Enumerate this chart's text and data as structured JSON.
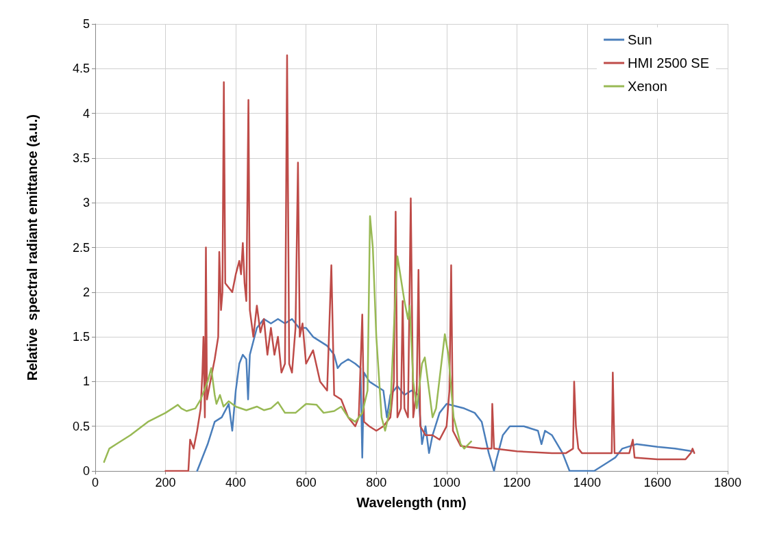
{
  "chart_data": {
    "type": "line",
    "xlabel": "Wavelength (nm)",
    "ylabel": "Relative  spectral radiant emittance (a.u.)",
    "xlim": [
      0,
      1800
    ],
    "xticks": [
      0,
      200,
      400,
      600,
      800,
      1000,
      1200,
      1400,
      1600,
      1800
    ],
    "ylim": [
      0,
      5
    ],
    "yticks": [
      0,
      0.5,
      1,
      1.5,
      2,
      2.5,
      3,
      3.5,
      4,
      4.5,
      5
    ],
    "grid": true,
    "legend": "top right",
    "marker": "none",
    "line_style": "solid",
    "series": [
      {
        "name": "Sun",
        "color": "#4a7ebb",
        "x": [
          290,
          300,
          320,
          340,
          360,
          380,
          390,
          400,
          410,
          420,
          430,
          435,
          440,
          460,
          480,
          500,
          520,
          540,
          560,
          580,
          600,
          620,
          640,
          660,
          680,
          690,
          700,
          720,
          740,
          755,
          760,
          765,
          780,
          800,
          820,
          830,
          840,
          860,
          880,
          900,
          920,
          930,
          940,
          950,
          960,
          980,
          1000,
          1050,
          1080,
          1100,
          1120,
          1135,
          1140,
          1160,
          1180,
          1220,
          1260,
          1270,
          1280,
          1300,
          1330,
          1350,
          1420,
          1440,
          1460,
          1480,
          1500,
          1540,
          1600,
          1650,
          1700
        ],
        "values": [
          0,
          0.1,
          0.3,
          0.55,
          0.6,
          0.75,
          0.45,
          0.9,
          1.2,
          1.3,
          1.25,
          0.8,
          1.3,
          1.6,
          1.7,
          1.65,
          1.7,
          1.65,
          1.7,
          1.6,
          1.6,
          1.5,
          1.45,
          1.4,
          1.3,
          1.15,
          1.2,
          1.25,
          1.2,
          1.15,
          0.15,
          1.1,
          1.0,
          0.95,
          0.9,
          0.6,
          0.85,
          0.95,
          0.85,
          0.9,
          0.85,
          0.3,
          0.5,
          0.2,
          0.4,
          0.65,
          0.75,
          0.7,
          0.65,
          0.55,
          0.2,
          0,
          0.1,
          0.4,
          0.5,
          0.5,
          0.45,
          0.3,
          0.45,
          0.4,
          0.2,
          0,
          0,
          0.05,
          0.1,
          0.15,
          0.25,
          0.3,
          0.27,
          0.25,
          0.22
        ]
      },
      {
        "name": "HMI 2500 SE",
        "color": "#be4b48",
        "x": [
          200,
          265,
          270,
          280,
          290,
          300,
          305,
          308,
          312,
          315,
          318,
          330,
          340,
          350,
          353,
          358,
          362,
          366,
          370,
          390,
          400,
          410,
          415,
          420,
          425,
          430,
          436,
          440,
          450,
          460,
          470,
          480,
          490,
          500,
          510,
          520,
          530,
          540,
          546,
          552,
          560,
          570,
          577,
          582,
          590,
          600,
          620,
          640,
          660,
          672,
          680,
          700,
          720,
          740,
          750,
          760,
          765,
          780,
          800,
          820,
          840,
          850,
          855,
          860,
          870,
          875,
          880,
          890,
          898,
          905,
          915,
          920,
          925,
          940,
          960,
          980,
          1000,
          1008,
          1013,
          1018,
          1040,
          1100,
          1128,
          1130,
          1135,
          1200,
          1300,
          1340,
          1360,
          1363,
          1368,
          1375,
          1385,
          1470,
          1473,
          1478,
          1520,
          1530,
          1535,
          1600,
          1680,
          1695,
          1700,
          1705
        ],
        "values": [
          0,
          0,
          0.35,
          0.25,
          0.45,
          0.7,
          1.1,
          1.5,
          0.6,
          2.5,
          0.8,
          1.05,
          1.25,
          1.5,
          2.45,
          1.8,
          2.0,
          4.35,
          2.1,
          2.0,
          2.2,
          2.35,
          2.2,
          2.55,
          2.1,
          1.9,
          4.15,
          1.8,
          1.5,
          1.85,
          1.55,
          1.7,
          1.3,
          1.6,
          1.3,
          1.5,
          1.1,
          1.2,
          4.65,
          1.2,
          1.1,
          1.6,
          3.45,
          1.5,
          1.65,
          1.2,
          1.35,
          1.0,
          0.9,
          2.3,
          0.85,
          0.8,
          0.6,
          0.5,
          0.6,
          1.75,
          0.55,
          0.5,
          0.45,
          0.5,
          0.6,
          1.0,
          2.9,
          0.6,
          0.7,
          1.9,
          0.7,
          0.6,
          3.05,
          0.6,
          0.9,
          2.25,
          0.5,
          0.4,
          0.4,
          0.35,
          0.5,
          0.9,
          2.3,
          0.45,
          0.28,
          0.25,
          0.25,
          0.75,
          0.25,
          0.22,
          0.2,
          0.2,
          0.25,
          1.0,
          0.5,
          0.25,
          0.2,
          0.2,
          1.1,
          0.2,
          0.2,
          0.35,
          0.15,
          0.13,
          0.13,
          0.2,
          0.25,
          0.2
        ]
      },
      {
        "name": "Xenon",
        "color": "#98b954",
        "x": [
          25,
          40,
          60,
          100,
          150,
          200,
          235,
          245,
          260,
          285,
          300,
          320,
          330,
          340,
          345,
          355,
          365,
          380,
          400,
          430,
          460,
          480,
          500,
          520,
          540,
          570,
          600,
          630,
          650,
          680,
          700,
          720,
          740,
          760,
          775,
          782,
          790,
          800,
          815,
          825,
          840,
          850,
          860,
          880,
          890,
          895,
          905,
          915,
          930,
          938,
          960,
          970,
          995,
          1005,
          1020,
          1040,
          1050,
          1070
        ],
        "values": [
          0.1,
          0.25,
          0.3,
          0.4,
          0.55,
          0.65,
          0.74,
          0.7,
          0.67,
          0.7,
          0.8,
          1.0,
          1.15,
          0.85,
          0.75,
          0.85,
          0.72,
          0.78,
          0.72,
          0.68,
          0.72,
          0.68,
          0.7,
          0.77,
          0.65,
          0.65,
          0.75,
          0.74,
          0.65,
          0.67,
          0.72,
          0.6,
          0.55,
          0.65,
          0.9,
          2.85,
          2.5,
          1.5,
          0.6,
          0.45,
          0.7,
          1.6,
          2.4,
          1.9,
          1.7,
          1.85,
          1.0,
          0.7,
          1.2,
          1.27,
          0.6,
          0.7,
          1.53,
          1.3,
          0.6,
          0.3,
          0.25,
          0.33
        ]
      }
    ]
  }
}
